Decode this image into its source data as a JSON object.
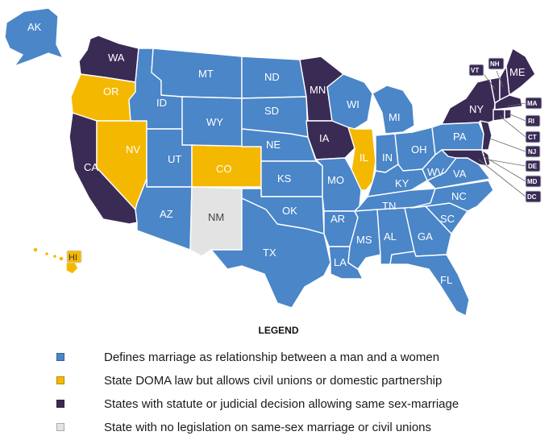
{
  "colors": {
    "defines_marriage": "#4a86c8",
    "civil_unions": "#f5b800",
    "same_sex_marriage": "#3a2b55",
    "no_legislation": "#e3e3e3",
    "border": "#ffffff"
  },
  "states": [
    {
      "code": "AK",
      "category": "defines_marriage"
    },
    {
      "code": "WA",
      "category": "same_sex_marriage"
    },
    {
      "code": "OR",
      "category": "civil_unions"
    },
    {
      "code": "CA",
      "category": "same_sex_marriage"
    },
    {
      "code": "NV",
      "category": "civil_unions"
    },
    {
      "code": "ID",
      "category": "defines_marriage"
    },
    {
      "code": "MT",
      "category": "defines_marriage"
    },
    {
      "code": "WY",
      "category": "defines_marriage"
    },
    {
      "code": "UT",
      "category": "defines_marriage"
    },
    {
      "code": "AZ",
      "category": "defines_marriage"
    },
    {
      "code": "CO",
      "category": "civil_unions"
    },
    {
      "code": "NM",
      "category": "no_legislation"
    },
    {
      "code": "ND",
      "category": "defines_marriage"
    },
    {
      "code": "SD",
      "category": "defines_marriage"
    },
    {
      "code": "NE",
      "category": "defines_marriage"
    },
    {
      "code": "KS",
      "category": "defines_marriage"
    },
    {
      "code": "OK",
      "category": "defines_marriage"
    },
    {
      "code": "TX",
      "category": "defines_marriage"
    },
    {
      "code": "MN",
      "category": "same_sex_marriage"
    },
    {
      "code": "IA",
      "category": "same_sex_marriage"
    },
    {
      "code": "MO",
      "category": "defines_marriage"
    },
    {
      "code": "AR",
      "category": "defines_marriage"
    },
    {
      "code": "LA",
      "category": "defines_marriage"
    },
    {
      "code": "WI",
      "category": "defines_marriage"
    },
    {
      "code": "IL",
      "category": "civil_unions"
    },
    {
      "code": "MI",
      "category": "defines_marriage"
    },
    {
      "code": "IN",
      "category": "defines_marriage"
    },
    {
      "code": "OH",
      "category": "defines_marriage"
    },
    {
      "code": "KY",
      "category": "defines_marriage"
    },
    {
      "code": "TN",
      "category": "defines_marriage"
    },
    {
      "code": "MS",
      "category": "defines_marriage"
    },
    {
      "code": "AL",
      "category": "defines_marriage"
    },
    {
      "code": "GA",
      "category": "defines_marriage"
    },
    {
      "code": "FL",
      "category": "defines_marriage"
    },
    {
      "code": "SC",
      "category": "defines_marriage"
    },
    {
      "code": "NC",
      "category": "defines_marriage"
    },
    {
      "code": "VA",
      "category": "defines_marriage"
    },
    {
      "code": "WV",
      "category": "defines_marriage"
    },
    {
      "code": "PA",
      "category": "defines_marriage"
    },
    {
      "code": "NY",
      "category": "same_sex_marriage"
    },
    {
      "code": "VT",
      "category": "same_sex_marriage"
    },
    {
      "code": "NH",
      "category": "same_sex_marriage"
    },
    {
      "code": "ME",
      "category": "same_sex_marriage"
    },
    {
      "code": "MA",
      "category": "same_sex_marriage"
    },
    {
      "code": "RI",
      "category": "same_sex_marriage"
    },
    {
      "code": "CT",
      "category": "same_sex_marriage"
    },
    {
      "code": "NJ",
      "category": "same_sex_marriage"
    },
    {
      "code": "DE",
      "category": "same_sex_marriage"
    },
    {
      "code": "MD",
      "category": "same_sex_marriage"
    },
    {
      "code": "DC",
      "category": "same_sex_marriage"
    },
    {
      "code": "HI",
      "category": "civil_unions"
    }
  ],
  "legend": {
    "title": "LEGEND",
    "items": [
      {
        "category": "defines_marriage",
        "label": "Defines marriage as relationship between a man and a women"
      },
      {
        "category": "civil_unions",
        "label": "State DOMA law but allows civil unions or domestic partnership"
      },
      {
        "category": "same_sex_marriage",
        "label": "States with statute or judicial decision allowing same sex-marriage"
      },
      {
        "category": "no_legislation",
        "label": "State with no legislation on same-sex marriage or civil unions"
      }
    ]
  }
}
